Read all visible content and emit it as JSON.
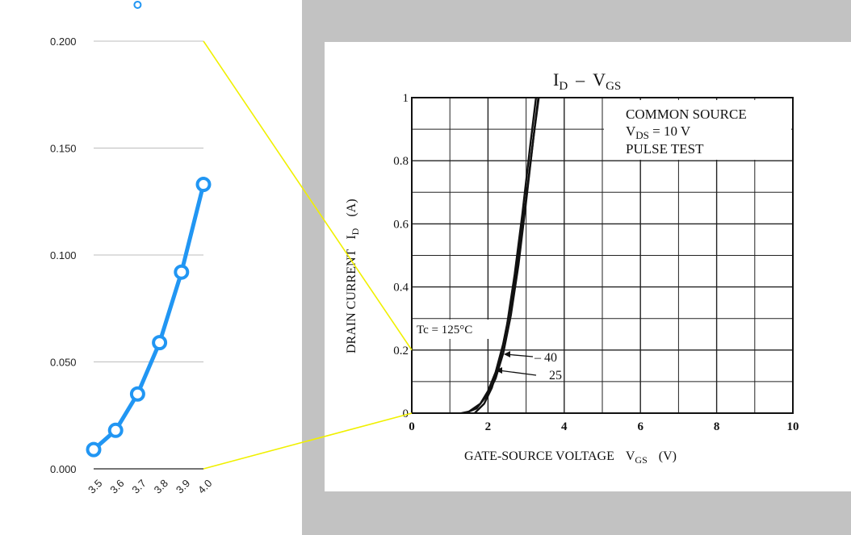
{
  "chart_data": [
    {
      "type": "line",
      "title": "",
      "xlabel": "",
      "ylabel": "",
      "x": [
        3.5,
        3.6,
        3.7,
        3.8,
        3.9,
        4.0
      ],
      "x_tick_labels": [
        "3.5",
        "3.6",
        "3.7",
        "3.8",
        "3.9",
        "4.0"
      ],
      "series": [
        {
          "values": [
            0.009,
            0.018,
            0.035,
            0.059,
            0.092,
            0.133
          ]
        }
      ],
      "clipped_point": {
        "x": 3.7,
        "y": 0.217
      },
      "y_ticks": [
        0,
        0.05,
        0.1,
        0.15,
        0.2
      ],
      "y_tick_labels": [
        "0.000",
        "0.050",
        "0.100",
        "0.150",
        "0.200"
      ],
      "xlim": [
        3.5,
        4.0
      ],
      "ylim": [
        0,
        0.2
      ],
      "grid": "horizontal",
      "line_color": "#2196f3",
      "legend": "none"
    },
    {
      "type": "line",
      "title_main": "I",
      "title_main_sub": "D",
      "title_dash": "–",
      "title_v": "V",
      "title_v_sub": "GS",
      "xlabel_main": "GATE-SOURCE VOLTAGE",
      "xlabel_var": "V",
      "xlabel_var_sub": "GS",
      "xlabel_unit": "(V)",
      "ylabel_main": "DRAIN CURRENT",
      "ylabel_var": "I",
      "ylabel_var_sub": "D",
      "ylabel_unit": "(A)",
      "x_ticks": [
        0,
        2,
        4,
        6,
        8,
        10
      ],
      "x_tick_labels": [
        "0",
        "2",
        "4",
        "6",
        "8",
        "10"
      ],
      "y_ticks": [
        0,
        0.2,
        0.4,
        0.6,
        0.8,
        1
      ],
      "y_tick_labels": [
        "0",
        "0.2",
        "0.4",
        "0.6",
        "0.8",
        "1"
      ],
      "xlim": [
        0,
        10
      ],
      "ylim": [
        0,
        1
      ],
      "grid": true,
      "annotation": {
        "line1": "COMMON SOURCE",
        "line2_main": "V",
        "line2_sub": "DS",
        "line2_rest": " = 10 V",
        "line3": "PULSE TEST"
      },
      "tc_label": "Tc = 125°C",
      "series": [
        {
          "name": "-40",
          "label": "– 40",
          "x": [
            1.3,
            1.5,
            1.8,
            2.0,
            2.2,
            2.4,
            2.6,
            2.8,
            3.0,
            3.2,
            3.4,
            3.5
          ],
          "y": [
            0,
            0.005,
            0.03,
            0.07,
            0.13,
            0.22,
            0.34,
            0.5,
            0.68,
            0.88,
            1.06,
            1.15
          ]
        },
        {
          "name": "25",
          "label": "25",
          "x": [
            1.4,
            1.7,
            2.0,
            2.2,
            2.4,
            2.6,
            2.8,
            3.0,
            3.2,
            3.4,
            3.55
          ],
          "y": [
            0,
            0.015,
            0.06,
            0.11,
            0.19,
            0.31,
            0.47,
            0.67,
            0.88,
            1.08,
            1.2
          ]
        },
        {
          "name": "125",
          "x": [
            1.65,
            1.9,
            2.1,
            2.3,
            2.5,
            2.7,
            2.9,
            3.1,
            3.3,
            3.5
          ],
          "y": [
            0,
            0.03,
            0.08,
            0.16,
            0.28,
            0.44,
            0.63,
            0.84,
            1.04,
            1.22
          ]
        }
      ],
      "zoom_box": {
        "x": [
          0,
          0
        ],
        "y": [
          0,
          0.2
        ]
      }
    }
  ],
  "colors": {
    "connector": "#f0f000",
    "gray_background": "#c2c2c2",
    "left_line": "#2196f3"
  }
}
